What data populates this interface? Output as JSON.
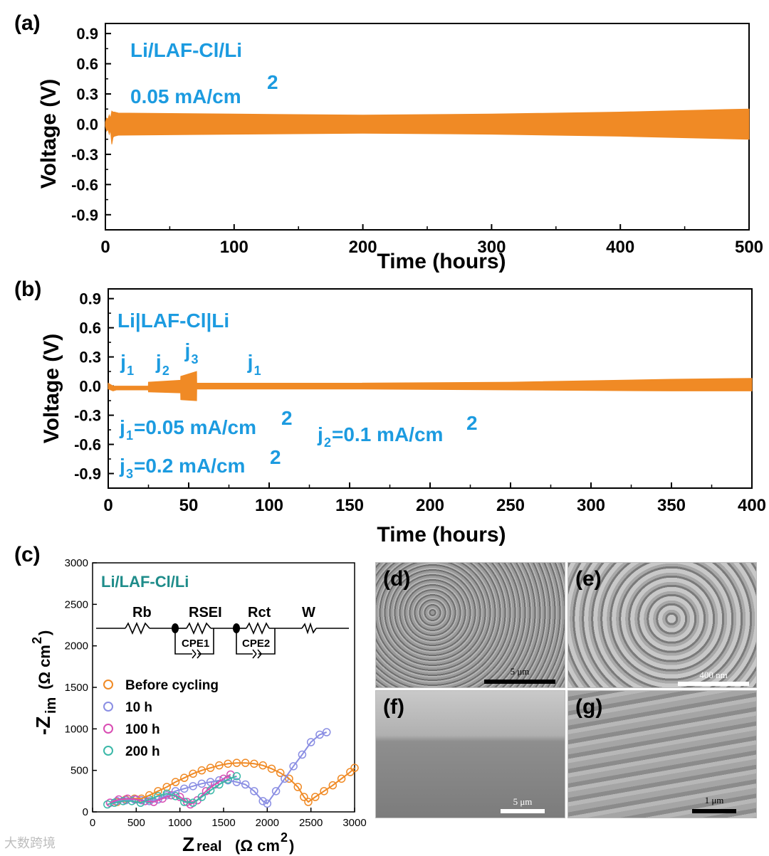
{
  "chart_data": [
    {
      "panel": "(a)",
      "type": "line",
      "series": [
        {
          "name": "Li/LAF-Cl/Li",
          "x": [
            0,
            1,
            2,
            3,
            4,
            5,
            6,
            7,
            10,
            100,
            200,
            300,
            400,
            500
          ],
          "upper": [
            0.02,
            0.06,
            0.05,
            0.09,
            0.06,
            0.13,
            0.12,
            0.12,
            0.11,
            0.1,
            0.09,
            0.1,
            0.12,
            0.15
          ],
          "lower": [
            -0.02,
            -0.07,
            -0.05,
            -0.1,
            -0.06,
            -0.2,
            -0.13,
            -0.12,
            -0.11,
            -0.1,
            -0.09,
            -0.1,
            -0.12,
            -0.15
          ]
        }
      ],
      "annotations": [
        "Li/LAF-Cl/Li",
        "0.05 mA/cm",
        "2"
      ],
      "xlabel": "Time (hours)",
      "ylabel": "Voltage (V)",
      "xlim": [
        0,
        500
      ],
      "ylim": [
        -1.05,
        1.0
      ],
      "xticks": [
        0,
        100,
        200,
        300,
        400,
        500
      ],
      "yticks": [
        -0.9,
        -0.6,
        -0.3,
        0.0,
        0.3,
        0.6,
        0.9
      ],
      "color": "#f08a25"
    },
    {
      "panel": "(b)",
      "type": "line",
      "series": [
        {
          "name": "Li|LAF-Cl|Li",
          "x": [
            0,
            3,
            5,
            24.9,
            25,
            45,
            45.1,
            54.9,
            55,
            150,
            250,
            350,
            400
          ],
          "upper": [
            0.03,
            0.0,
            0.0,
            0.0,
            0.04,
            0.06,
            0.1,
            0.15,
            0.03,
            0.03,
            0.04,
            0.07,
            0.08
          ],
          "lower": [
            -0.03,
            -0.05,
            -0.04,
            -0.04,
            -0.06,
            -0.07,
            -0.14,
            -0.15,
            -0.03,
            -0.03,
            -0.04,
            -0.05,
            -0.05
          ]
        }
      ],
      "annotations": [
        {
          "label": "j",
          "sub": "1",
          "x": 12
        },
        {
          "label": "j",
          "sub": "2",
          "x": 34
        },
        {
          "label": "j",
          "sub": "3",
          "x": 52
        },
        {
          "label": "j",
          "sub": "1",
          "x": 91
        }
      ],
      "legend_text": {
        "title": "Li|LAF-Cl|Li",
        "j1": "=0.05 mA/cm",
        "j2": "=0.1 mA/cm",
        "j3": "=0.2 mA/cm",
        "sup": "2"
      },
      "xlabel": "Time (hours)",
      "ylabel": "Voltage (V)",
      "xlim": [
        0,
        400
      ],
      "ylim": [
        -1.05,
        1.0
      ],
      "xticks": [
        0,
        50,
        100,
        150,
        200,
        250,
        300,
        350,
        400
      ],
      "yticks": [
        -0.9,
        -0.6,
        -0.3,
        0.0,
        0.3,
        0.6,
        0.9
      ],
      "color": "#f08a25"
    },
    {
      "panel": "(c)",
      "type": "scatter",
      "title": "Li/LAF-Cl/Li",
      "xlabel": "Z",
      "xlabel_sub": "real",
      "xlabel_units": "(Ω cm",
      "xlabel_units_end": ")",
      "ylabel": "-Z",
      "ylabel_sub": "im",
      "ylabel_units": "(Ω cm",
      "ylabel_units_end": ")",
      "sup": "2",
      "xlim": [
        0,
        3000
      ],
      "ylim": [
        0,
        3000
      ],
      "xticks": [
        0,
        500,
        1000,
        1500,
        2000,
        2500,
        3000
      ],
      "yticks": [
        0,
        500,
        1000,
        1500,
        2000,
        2500,
        3000
      ],
      "circuit": {
        "rb": "Rb",
        "rsei": "RSEI",
        "rct": "Rct",
        "w": "W",
        "cpe1": "CPE1",
        "cpe2": "CPE2"
      },
      "series": [
        {
          "name": "Before cycling",
          "color": "#f08a25",
          "x": [
            280,
            380,
            480,
            560,
            650,
            750,
            850,
            950,
            1050,
            1150,
            1250,
            1350,
            1450,
            1550,
            1650,
            1750,
            1850,
            1950,
            2050,
            2150,
            2250,
            2350,
            2420,
            2470,
            2550,
            2650,
            2750,
            2850,
            2950,
            3000
          ],
          "y": [
            120,
            150,
            160,
            160,
            200,
            250,
            300,
            360,
            410,
            460,
            500,
            530,
            560,
            580,
            590,
            590,
            580,
            560,
            520,
            470,
            400,
            300,
            180,
            120,
            180,
            250,
            320,
            400,
            480,
            530
          ]
        },
        {
          "name": "10 h",
          "color": "#8a8ee3",
          "x": [
            200,
            280,
            380,
            480,
            560,
            650,
            750,
            850,
            950,
            1050,
            1150,
            1250,
            1350,
            1450,
            1550,
            1650,
            1750,
            1850,
            1950,
            2000,
            2100,
            2200,
            2300,
            2400,
            2500,
            2600,
            2680
          ],
          "y": [
            110,
            130,
            140,
            150,
            140,
            130,
            150,
            200,
            250,
            280,
            310,
            340,
            360,
            380,
            380,
            360,
            330,
            250,
            130,
            100,
            250,
            400,
            550,
            690,
            840,
            930,
            960
          ]
        },
        {
          "name": "100 h",
          "color": "#d94db3",
          "x": [
            200,
            300,
            400,
            500,
            600,
            700,
            800,
            900,
            1000,
            1080,
            1120,
            1200,
            1300,
            1400,
            1500,
            1580
          ],
          "y": [
            110,
            150,
            160,
            150,
            130,
            120,
            160,
            200,
            180,
            120,
            90,
            140,
            250,
            330,
            400,
            450
          ]
        },
        {
          "name": "200 h",
          "color": "#3bb8a8",
          "x": [
            170,
            250,
            350,
            450,
            550,
            650,
            750,
            850,
            950,
            1050,
            1150,
            1250,
            1350,
            1450,
            1550,
            1650
          ],
          "y": [
            90,
            110,
            130,
            130,
            110,
            150,
            190,
            220,
            190,
            120,
            110,
            180,
            260,
            330,
            390,
            430
          ]
        }
      ]
    }
  ],
  "sem_images": [
    {
      "label": "(d)",
      "scale": "5 μm"
    },
    {
      "label": "(e)",
      "scale": "400 nm"
    },
    {
      "label": "(f)",
      "scale": "5 μm"
    },
    {
      "label": "(g)",
      "scale": "1 μm"
    }
  ],
  "watermark": "大数跨境",
  "colors": {
    "accent_blue": "#1c9be0",
    "teal_title": "#1e8c8a",
    "orange": "#f08a25"
  }
}
